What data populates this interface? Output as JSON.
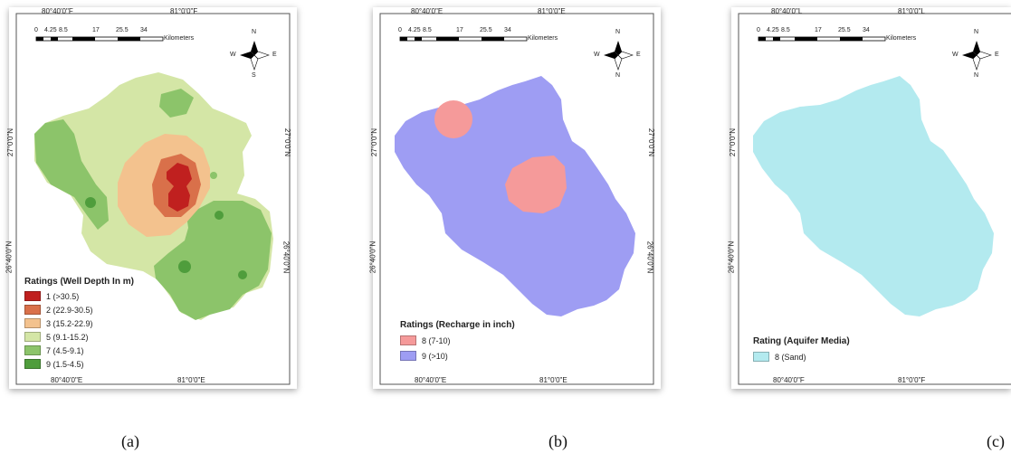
{
  "panels": [
    {
      "caption": "(a)",
      "top_lon_labels": [
        "80°40'0\"F",
        "81°0'0\"F"
      ],
      "bottom_lon_labels": [
        "80°40'0\"E",
        "81°0'0\"E"
      ],
      "lat_labels": [
        "27°0'0\"N",
        "26°40'0\"N"
      ],
      "scale_labels": [
        "0",
        "4.25",
        "8.5",
        "17",
        "25.5",
        "34"
      ],
      "scale_unit": "Kilometers",
      "compass": [
        "N",
        "W",
        "E",
        "S"
      ],
      "legend_title": "Ratings (Well Depth In m)",
      "legend": [
        {
          "label": "1 (>30.5)",
          "color": "#c0201f"
        },
        {
          "label": "2 (22.9-30.5)",
          "color": "#d9704a"
        },
        {
          "label": "3 (15.2-22.9)",
          "color": "#f3c28e"
        },
        {
          "label": "5 (9.1-15.2)",
          "color": "#d4e6a6"
        },
        {
          "label": "7 (4.5-9.1)",
          "color": "#8cc46a"
        },
        {
          "label": "9 (1.5-4.5)",
          "color": "#4f9d3c"
        }
      ]
    },
    {
      "caption": "(b)",
      "top_lon_labels": [
        "80°40'0\"E",
        "81°0'0\"E"
      ],
      "bottom_lon_labels": [
        "80°40'0\"E",
        "81°0'0\"E"
      ],
      "lat_labels": [
        "27°0'0\"N",
        "26°40'0\"N"
      ],
      "scale_labels": [
        "0",
        "4.25",
        "8.5",
        "17",
        "25.5",
        "34"
      ],
      "scale_unit": "Kilometers",
      "compass": [
        "N",
        "W",
        "E",
        "N"
      ],
      "legend_title": "Ratings (Recharge in inch)",
      "legend": [
        {
          "label": "8 (7-10)",
          "color": "#f59a9a"
        },
        {
          "label": "9 (>10)",
          "color": "#9e9df3"
        }
      ]
    },
    {
      "caption": "(c)",
      "top_lon_labels": [
        "80°40'0\"L",
        "81°0'0\"L"
      ],
      "bottom_lon_labels": [
        "80°40'0\"F",
        "81°0'0\"F"
      ],
      "lat_labels": [
        "27°0'0\"N",
        "26°40'0\"N"
      ],
      "scale_labels": [
        "0",
        "4.25",
        "8.5",
        "17",
        "25.5",
        "34"
      ],
      "scale_unit": "Kilometers",
      "compass": [
        "N",
        "W",
        "E",
        "N"
      ],
      "legend_title": "Rating (Aquifer Media)",
      "legend": [
        {
          "label": "8 (Sand)",
          "color": "#b3eaef"
        }
      ]
    }
  ],
  "colors": {
    "well_depth": {
      "r1": "#c0201f",
      "r2": "#d9704a",
      "r3": "#f3c28e",
      "r5": "#d4e6a6",
      "r7": "#8cc46a",
      "r9": "#4f9d3c"
    },
    "recharge": {
      "r8": "#f59a9a",
      "r9": "#9e9df3"
    },
    "aquifer": {
      "r8": "#b3eaef"
    }
  }
}
